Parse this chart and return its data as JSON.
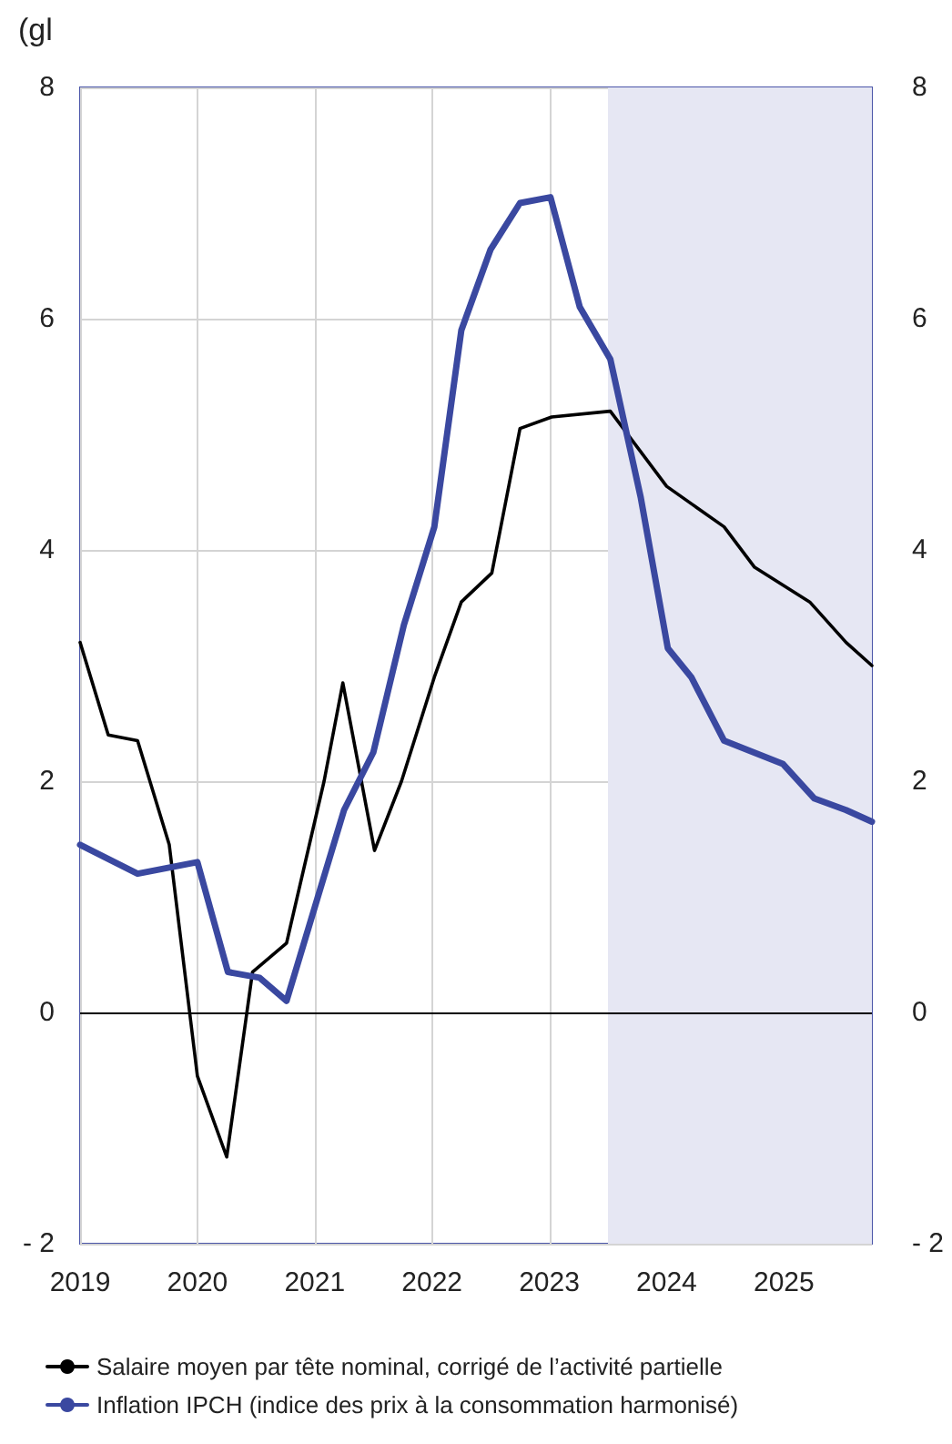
{
  "chart_data": {
    "type": "line",
    "ylabel": "(gl",
    "xlim": [
      2019,
      2025.75
    ],
    "xticks": [
      2019,
      2020,
      2021,
      2022,
      2023,
      2024,
      2025
    ],
    "ylim": [
      -2,
      8
    ],
    "yticks": [
      {
        "value": -2,
        "label": "- 2"
      },
      0,
      2,
      4,
      6,
      8
    ],
    "y2lim": [
      -2,
      8
    ],
    "y2ticks": [
      {
        "value": -2,
        "label": "- 2"
      },
      0,
      2,
      4,
      6,
      8
    ],
    "grid": true,
    "legend": "bottom",
    "marker": "none",
    "line_style": "solid",
    "ref_lines": [
      {
        "axis": "y",
        "value": 0,
        "color": "#000000"
      }
    ],
    "bands": [
      {
        "axis": "x",
        "from": 2023.5,
        "to": 2025.75,
        "color": "#e6e7f3"
      }
    ],
    "series": [
      {
        "name": "Salaire moyen par tête nominal, corrigé de l’activité partielle",
        "color": "#000000",
        "x": [
          2019,
          2019.24,
          2019.49,
          2019.76,
          2020,
          2020.25,
          2020.47,
          2020.76,
          2021.08,
          2021.24,
          2021.51,
          2021.74,
          2022.02,
          2022.25,
          2022.51,
          2022.75,
          2023.02,
          2023.52,
          2024,
          2024.49,
          2024.75,
          2025.22,
          2025.53,
          2025.75
        ],
        "values": [
          3.2,
          2.4,
          2.35,
          1.45,
          -0.55,
          -1.25,
          0.35,
          0.6,
          2.0,
          2.85,
          1.4,
          2.0,
          2.9,
          3.55,
          3.8,
          5.05,
          5.15,
          5.2,
          4.55,
          4.2,
          3.85,
          3.55,
          3.2,
          3.0
        ]
      },
      {
        "name": "Inflation IPCH (indice des prix à la consommation harmonisé)",
        "color": "#3a48a0",
        "x": [
          2019,
          2019.49,
          2020,
          2020.26,
          2020.53,
          2020.76,
          2021.25,
          2021.5,
          2021.76,
          2022.02,
          2022.25,
          2022.5,
          2022.75,
          2023.01,
          2023.26,
          2023.52,
          2023.78,
          2024.01,
          2024.21,
          2024.49,
          2024.99,
          2025.26,
          2025.53,
          2025.75
        ],
        "values": [
          1.45,
          1.2,
          1.3,
          0.35,
          0.3,
          0.1,
          1.75,
          2.25,
          3.35,
          4.2,
          5.9,
          6.6,
          7.0,
          7.05,
          6.1,
          5.65,
          4.45,
          3.15,
          2.9,
          2.35,
          2.15,
          1.85,
          1.75,
          1.65
        ]
      }
    ]
  }
}
